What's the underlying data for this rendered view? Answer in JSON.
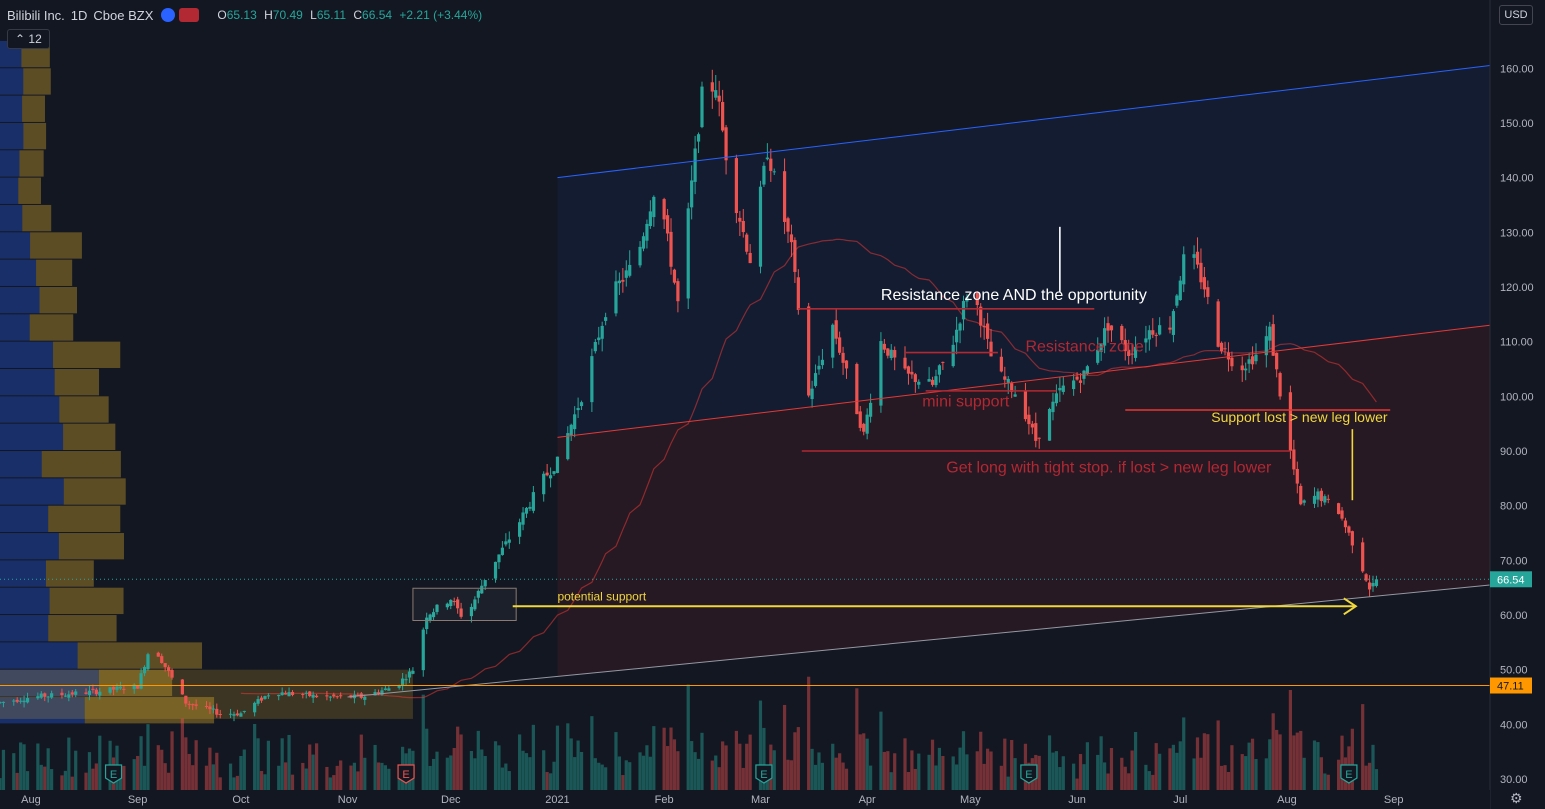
{
  "header": {
    "symbol": "Bilibili Inc.",
    "interval": "1D",
    "exchange": "Cboe BZX",
    "open_label": "O",
    "open": "65.13",
    "high_label": "H",
    "high": "70.49",
    "low_label": "L",
    "low": "65.11",
    "close_label": "C",
    "close": "66.54",
    "change": "+2.21 (+3.44%)",
    "indicator_count": "12",
    "currency": "USD"
  },
  "colors": {
    "background": "#131722",
    "up": "#26a69a",
    "down": "#ef5350",
    "channel_top": "#2962ff",
    "channel_mid": "#e53935",
    "channel_bottom": "#9598a1",
    "annotation_red": "#b22833",
    "annotation_yellow": "#f0d73b",
    "price_marker_bg": "#26a69a",
    "level_marker_bg": "#ff9800"
  },
  "chart_data": {
    "type": "candlestick",
    "title": "Bilibili Inc. · 1D · Cboe BZX",
    "ylim": [
      28,
      167
    ],
    "y_ticks": [
      30,
      40,
      50,
      60,
      70,
      80,
      90,
      100,
      110,
      120,
      130,
      140,
      150,
      160
    ],
    "y_tick_labels": [
      "30.00",
      "40.00",
      "50.00",
      "60.00",
      "70.00",
      "80.00",
      "90.00",
      "100.00",
      "110.00",
      "120.00",
      "130.00",
      "140.00",
      "150.00",
      "160.00"
    ],
    "x_labels": [
      "Aug",
      "Sep",
      "Oct",
      "Nov",
      "Dec",
      "2021",
      "Feb",
      "Mar",
      "Apr",
      "May",
      "Jun",
      "Jul",
      "Aug",
      "Sep"
    ],
    "x_dates": [
      "2020-08-01",
      "2020-09-01",
      "2020-10-01",
      "2020-11-01",
      "2020-12-01",
      "2021-01-01",
      "2021-02-01",
      "2021-03-01",
      "2021-04-01",
      "2021-05-01",
      "2021-06-01",
      "2021-07-01",
      "2021-08-01",
      "2021-09-01"
    ],
    "x_range": [
      "2020-07-23",
      "2021-09-29"
    ],
    "price_path": [
      [
        "2020-07-23",
        44
      ],
      [
        "2020-08-01",
        45
      ],
      [
        "2020-08-20",
        46
      ],
      [
        "2020-09-01",
        47
      ],
      [
        "2020-09-05",
        55
      ],
      [
        "2020-09-15",
        44
      ],
      [
        "2020-09-25",
        42
      ],
      [
        "2020-10-01",
        42
      ],
      [
        "2020-10-10",
        46
      ],
      [
        "2020-10-25",
        45
      ],
      [
        "2020-11-05",
        45
      ],
      [
        "2020-11-15",
        47
      ],
      [
        "2020-11-20",
        50
      ],
      [
        "2020-11-24",
        60
      ],
      [
        "2020-12-01",
        63
      ],
      [
        "2020-12-05",
        59
      ],
      [
        "2020-12-12",
        68
      ],
      [
        "2020-12-20",
        76
      ],
      [
        "2020-12-28",
        85
      ],
      [
        "2021-01-01",
        88
      ],
      [
        "2021-01-08",
        100
      ],
      [
        "2021-01-16",
        118
      ],
      [
        "2021-01-24",
        125
      ],
      [
        "2021-01-30",
        140
      ],
      [
        "2021-02-05",
        117
      ],
      [
        "2021-02-12",
        155
      ],
      [
        "2021-02-16",
        157
      ],
      [
        "2021-02-20",
        140
      ],
      [
        "2021-02-26",
        125
      ],
      [
        "2021-03-03",
        145
      ],
      [
        "2021-03-10",
        127
      ],
      [
        "2021-03-15",
        100
      ],
      [
        "2021-03-22",
        113
      ],
      [
        "2021-03-31",
        93
      ],
      [
        "2021-04-05",
        110
      ],
      [
        "2021-04-12",
        104
      ],
      [
        "2021-04-20",
        102
      ],
      [
        "2021-04-26",
        110
      ],
      [
        "2021-05-01",
        121
      ],
      [
        "2021-05-08",
        105
      ],
      [
        "2021-05-15",
        100
      ],
      [
        "2021-05-20",
        92
      ],
      [
        "2021-05-27",
        101
      ],
      [
        "2021-06-03",
        104
      ],
      [
        "2021-06-10",
        113
      ],
      [
        "2021-06-16",
        108
      ],
      [
        "2021-06-22",
        112
      ],
      [
        "2021-06-28",
        113
      ],
      [
        "2021-07-03",
        128
      ],
      [
        "2021-07-08",
        120
      ],
      [
        "2021-07-12",
        110
      ],
      [
        "2021-07-18",
        105
      ],
      [
        "2021-07-24",
        108
      ],
      [
        "2021-07-27",
        112
      ],
      [
        "2021-08-01",
        93
      ],
      [
        "2021-08-05",
        80
      ],
      [
        "2021-08-10",
        82
      ],
      [
        "2021-08-16",
        79
      ],
      [
        "2021-08-21",
        72
      ],
      [
        "2021-08-25",
        65
      ],
      [
        "2021-08-28",
        66.54
      ]
    ],
    "last_price": 66.54,
    "last_price_label": "66.54",
    "marked_level": 47.11,
    "marked_level_label": "47.11",
    "volume_ma_label": "",
    "earnings_markers": [
      "2020-08-25",
      "2020-11-18",
      "2021-03-02",
      "2021-05-18",
      "2021-08-19"
    ],
    "earnings_glyph": "E",
    "trendlines": [
      {
        "name": "channel-top",
        "from": [
          "2021-01-01",
          140
        ],
        "to": [
          "2021-09-29",
          160.5
        ]
      },
      {
        "name": "channel-mid",
        "from": [
          "2021-01-01",
          92.5
        ],
        "to": [
          "2021-09-29",
          113
        ]
      },
      {
        "name": "channel-bottom",
        "from": [
          "2020-11-01",
          45
        ],
        "to": [
          "2021-09-29",
          65.5
        ]
      }
    ],
    "horizontal_lines": [
      {
        "name": "resistance-zone-top",
        "from": "2021-03-12",
        "to": "2021-06-06",
        "y": 116
      },
      {
        "name": "resistance-zone-mid",
        "from": "2021-04-12",
        "to": "2021-05-09",
        "y": 108
      },
      {
        "name": "mini-support",
        "from": "2021-04-18",
        "to": "2021-05-26",
        "y": 101
      },
      {
        "name": "support-lost",
        "from": "2021-06-15",
        "to": "2021-08-31",
        "y": 97.5
      },
      {
        "name": "tight-stop",
        "from": "2021-03-13",
        "to": "2021-08-02",
        "y": 90
      }
    ],
    "annotations": [
      {
        "text": "Resistance zone AND the opportunity",
        "x": "2021-04-05",
        "y": 117.6,
        "color": "white"
      },
      {
        "text": "Resistance zone",
        "x": "2021-05-17",
        "y": 108.2,
        "color": "red"
      },
      {
        "text": "mini support",
        "x": "2021-04-17",
        "y": 98.1,
        "color": "red"
      },
      {
        "text": "Support lost > new leg lower",
        "x": "2021-07-10",
        "y": 95.3,
        "color": "yellow"
      },
      {
        "text": "Get long with tight stop. if lost > new leg lower",
        "x": "2021-04-24",
        "y": 86.1,
        "color": "red"
      },
      {
        "text": "potential support",
        "x": "2021-01-01",
        "y": 62.7,
        "color": "yellow"
      }
    ],
    "potential_support_arrow": {
      "from": [
        "2020-12-19",
        61.6
      ],
      "to": [
        "2021-08-21",
        61.6
      ]
    },
    "highlight_box": {
      "from": [
        "2020-11-20",
        64.9
      ],
      "to": [
        "2020-12-20",
        59
      ]
    },
    "grid": false,
    "volume_profile": true
  }
}
